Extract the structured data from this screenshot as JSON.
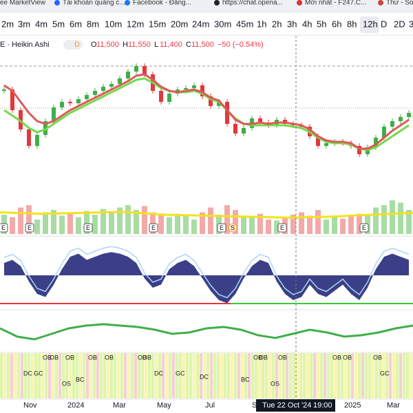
{
  "bookmarks": [
    "ee MarketView",
    "Tài khoản quảng c...",
    "Facebook - Đăng...",
    "https://chat.opena...",
    "Mới nhất - F247.C...",
    "Thư - Sơ"
  ],
  "timeframes": [
    "2m",
    "3m",
    "4m",
    "5m",
    "6m",
    "8m",
    "10m",
    "12m",
    "15m",
    "20m",
    "24m",
    "30m",
    "45m",
    "1h",
    "2h",
    "3h",
    "4h",
    "5h",
    "6h",
    "8h",
    "12h",
    "D",
    "2D",
    "3"
  ],
  "active_timeframe": 20,
  "legend": {
    "symbol": "E · Heikin Ashi",
    "badge": "D",
    "open_label": "O",
    "open": "11,500",
    "high_label": "H",
    "high": "11,550",
    "low_label": "L",
    "low": "11,400",
    "close_label": "C",
    "close": "11,500",
    "change": "−50 (−0.54%)"
  },
  "price": {
    "ylim": [
      10000,
      14000
    ],
    "values": [
      12750,
      12000,
      11300,
      10700,
      11100,
      11600,
      12100,
      12300,
      12250,
      12400,
      12550,
      12700,
      12850,
      12950,
      13150,
      13400,
      13600,
      13300,
      12700,
      12300,
      12600,
      12750,
      12800,
      12900,
      12500,
      12150,
      12300,
      11500,
      11150,
      11350,
      11700,
      11550,
      11450,
      11650,
      11500,
      11450,
      11400,
      11050,
      10700,
      10800,
      10850,
      10800,
      10700,
      10400,
      10650,
      11000,
      11400,
      11600,
      11750,
      11900
    ],
    "fast": [
      12900,
      12700,
      12300,
      11900,
      11600,
      11500,
      11600,
      11800,
      12000,
      12150,
      12300,
      12450,
      12600,
      12750,
      12900,
      13050,
      13250,
      13300,
      13100,
      12850,
      12700,
      12650,
      12700,
      12750,
      12650,
      12450,
      12350,
      12000,
      11650,
      11500,
      11500,
      11550,
      11500,
      11550,
      11550,
      11500,
      11450,
      11300,
      11050,
      10900,
      10850,
      10850,
      10800,
      10600,
      10600,
      10750,
      11000,
      11250,
      11450,
      11650
    ],
    "slow": [
      12000,
      11800,
      11600,
      11350,
      11200,
      11300,
      11500,
      11700,
      11900,
      12050,
      12200,
      12350,
      12500,
      12650,
      12800,
      12950,
      13100,
      13150,
      13000,
      12800,
      12700,
      12650,
      12650,
      12700,
      12600,
      12400,
      12300,
      12000,
      11700,
      11500,
      11450,
      11450,
      11450,
      11450,
      11450,
      11400,
      11350,
      11200,
      11000,
      10850,
      10800,
      10800,
      10750,
      10600,
      10550,
      10650,
      10850,
      11050,
      11250,
      11450
    ]
  },
  "volume": {
    "ylim": [
      0,
      100
    ],
    "values": [
      40,
      35,
      55,
      60,
      30,
      45,
      50,
      38,
      42,
      35,
      48,
      40,
      52,
      45,
      55,
      60,
      50,
      58,
      45,
      40,
      35,
      42,
      38,
      30,
      45,
      55,
      40,
      60,
      50,
      35,
      38,
      42,
      30,
      28,
      35,
      40,
      45,
      38,
      50,
      30,
      35,
      32,
      40,
      42,
      38,
      55,
      60,
      70,
      65,
      50
    ],
    "ma": [
      45,
      42,
      44,
      46,
      40,
      38,
      36,
      34,
      36,
      40,
      44
    ]
  },
  "events": [
    "E",
    "E",
    "E",
    "E",
    "E",
    "S",
    "E",
    "E"
  ],
  "oscillator": {
    "ylim": [
      -100,
      100
    ],
    "values": [
      40,
      50,
      30,
      -20,
      -60,
      -70,
      -30,
      20,
      60,
      70,
      50,
      60,
      70,
      75,
      70,
      60,
      40,
      -10,
      -40,
      -30,
      20,
      40,
      50,
      30,
      -10,
      -50,
      -80,
      -90,
      -60,
      -10,
      30,
      50,
      40,
      -20,
      -60,
      -80,
      -70,
      -30,
      -60,
      -70,
      -50,
      -30,
      -60,
      -80,
      -40,
      20,
      60,
      70,
      60,
      50
    ]
  },
  "momentum": {
    "ylim": [
      -50,
      50
    ],
    "values": [
      10,
      -20,
      -30,
      -10,
      10,
      20,
      25,
      20,
      15,
      5,
      -10,
      -5,
      10,
      15,
      5,
      -15,
      -25,
      -10,
      5,
      -5,
      -20,
      -15,
      -5,
      10,
      20
    ]
  },
  "osc_labels": [
    "OB",
    "OB",
    "OB",
    "OB",
    "OB",
    "OB",
    "OB",
    "OB",
    "OB",
    "OB",
    "OB",
    "OB",
    "OB",
    "DC",
    "GC",
    "OS",
    "BC",
    "DC",
    "GC",
    "DC",
    "BC",
    "OS",
    "GC"
  ],
  "x_axis": [
    "Nov",
    "2024",
    "Mar",
    "May",
    "Jul",
    "Se",
    "2025",
    "Mar"
  ],
  "crosshair": {
    "date": "Tue 22 Oct '24",
    "time": "19:00"
  }
}
